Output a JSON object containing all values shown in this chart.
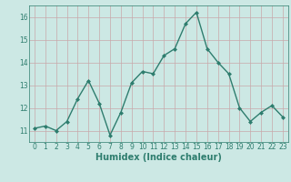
{
  "x": [
    0,
    1,
    2,
    3,
    4,
    5,
    6,
    7,
    8,
    9,
    10,
    11,
    12,
    13,
    14,
    15,
    16,
    17,
    18,
    19,
    20,
    21,
    22,
    23
  ],
  "y": [
    11.1,
    11.2,
    11.0,
    11.4,
    12.4,
    13.2,
    12.2,
    10.8,
    11.8,
    13.1,
    13.6,
    13.5,
    14.3,
    14.6,
    15.7,
    16.2,
    14.6,
    14.0,
    13.5,
    12.0,
    11.4,
    11.8,
    12.1,
    11.6
  ],
  "line_color": "#2e7d6e",
  "marker": "D",
  "marker_size": 2,
  "bg_color": "#cce8e4",
  "grid_color": "#c8a8aa",
  "xlabel": "Humidex (Indice chaleur)",
  "ylim": [
    10.5,
    16.5
  ],
  "xlim": [
    -0.5,
    23.5
  ],
  "yticks": [
    11,
    12,
    13,
    14,
    15,
    16
  ],
  "xticks": [
    0,
    1,
    2,
    3,
    4,
    5,
    6,
    7,
    8,
    9,
    10,
    11,
    12,
    13,
    14,
    15,
    16,
    17,
    18,
    19,
    20,
    21,
    22,
    23
  ],
  "tick_fontsize": 5.5,
  "xlabel_fontsize": 7,
  "linewidth": 1.0
}
